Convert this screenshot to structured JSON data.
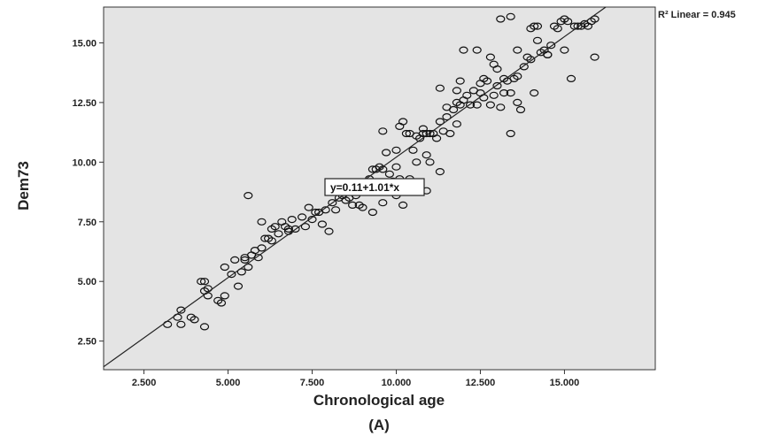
{
  "chart_data": {
    "type": "scatter",
    "title": "",
    "xlabel": "Chronological age",
    "ylabel": "Dem73",
    "caption": "(A)",
    "xlim": [
      1.3,
      17.7
    ],
    "ylim": [
      1.3,
      16.5
    ],
    "x_ticks": [
      2.5,
      5,
      7.5,
      10,
      12.5,
      15
    ],
    "x_tick_labels": [
      "2.500",
      "5.000",
      "7.500",
      "10.000",
      "12.500",
      "15.000"
    ],
    "y_ticks": [
      2.5,
      5,
      7.5,
      10,
      12.5,
      15
    ],
    "y_tick_labels": [
      "2.50",
      "5.00",
      "7.50",
      "10.00",
      "12.50",
      "15.00"
    ],
    "grid": false,
    "fit_line": {
      "intercept": 0.11,
      "slope": 1.01
    },
    "equation_label": "y=0.11+1.01*x",
    "r2_label": "R² Linear = 0.945",
    "colors": {
      "plot_background": "#e4e4e4",
      "marker": "#111111",
      "line": "#222222"
    },
    "points": [
      [
        3.2,
        3.2
      ],
      [
        3.5,
        3.5
      ],
      [
        3.6,
        3.8
      ],
      [
        3.6,
        3.2
      ],
      [
        3.9,
        3.5
      ],
      [
        4.0,
        3.4
      ],
      [
        4.3,
        3.1
      ],
      [
        4.3,
        4.6
      ],
      [
        4.4,
        4.4
      ],
      [
        4.3,
        5.0
      ],
      [
        4.2,
        5.0
      ],
      [
        4.4,
        4.7
      ],
      [
        4.7,
        4.2
      ],
      [
        4.8,
        4.1
      ],
      [
        4.9,
        4.4
      ],
      [
        4.9,
        5.6
      ],
      [
        5.2,
        5.9
      ],
      [
        5.1,
        5.3
      ],
      [
        5.3,
        4.8
      ],
      [
        5.4,
        5.4
      ],
      [
        5.5,
        5.9
      ],
      [
        5.6,
        5.6
      ],
      [
        5.7,
        6.1
      ],
      [
        5.5,
        6.0
      ],
      [
        5.9,
        6.0
      ],
      [
        6.0,
        6.4
      ],
      [
        5.8,
        6.3
      ],
      [
        6.1,
        6.8
      ],
      [
        6.2,
        6.8
      ],
      [
        6.3,
        7.2
      ],
      [
        6.4,
        7.3
      ],
      [
        6.5,
        7.0
      ],
      [
        6.6,
        7.5
      ],
      [
        6.7,
        7.3
      ],
      [
        6.8,
        7.1
      ],
      [
        6.9,
        7.6
      ],
      [
        5.6,
        8.6
      ],
      [
        6.0,
        7.5
      ],
      [
        6.3,
        6.7
      ],
      [
        6.8,
        7.2
      ],
      [
        7.0,
        7.2
      ],
      [
        7.2,
        7.7
      ],
      [
        7.3,
        7.3
      ],
      [
        7.4,
        8.1
      ],
      [
        7.5,
        7.6
      ],
      [
        7.6,
        7.9
      ],
      [
        7.8,
        7.4
      ],
      [
        7.9,
        8.0
      ],
      [
        7.7,
        7.9
      ],
      [
        8.0,
        7.1
      ],
      [
        8.1,
        8.3
      ],
      [
        8.2,
        8.0
      ],
      [
        8.3,
        8.5
      ],
      [
        8.4,
        8.6
      ],
      [
        8.5,
        8.4
      ],
      [
        8.6,
        8.5
      ],
      [
        8.7,
        8.2
      ],
      [
        8.8,
        8.6
      ],
      [
        8.9,
        8.2
      ],
      [
        9.0,
        8.1
      ],
      [
        9.0,
        9.0
      ],
      [
        9.2,
        9.3
      ],
      [
        9.3,
        9.7
      ],
      [
        9.4,
        9.7
      ],
      [
        9.5,
        9.8
      ],
      [
        9.6,
        9.7
      ],
      [
        9.7,
        9.0
      ],
      [
        9.8,
        9.5
      ],
      [
        9.9,
        9.2
      ],
      [
        10.0,
        9.8
      ],
      [
        10.1,
        9.3
      ],
      [
        10.2,
        8.2
      ],
      [
        9.3,
        7.9
      ],
      [
        9.6,
        8.3
      ],
      [
        9.8,
        8.8
      ],
      [
        10.0,
        8.6
      ],
      [
        10.3,
        9.0
      ],
      [
        10.4,
        9.3
      ],
      [
        10.5,
        10.5
      ],
      [
        10.6,
        10.0
      ],
      [
        10.7,
        11.0
      ],
      [
        10.8,
        11.2
      ],
      [
        10.9,
        10.3
      ],
      [
        9.6,
        11.3
      ],
      [
        9.7,
        10.4
      ],
      [
        10.0,
        10.5
      ],
      [
        10.1,
        11.5
      ],
      [
        10.2,
        11.7
      ],
      [
        10.3,
        11.2
      ],
      [
        10.4,
        11.2
      ],
      [
        10.6,
        11.1
      ],
      [
        10.8,
        11.4
      ],
      [
        10.9,
        11.2
      ],
      [
        11.0,
        11.2
      ],
      [
        11.0,
        10.0
      ],
      [
        11.1,
        11.2
      ],
      [
        11.2,
        11.0
      ],
      [
        11.3,
        11.7
      ],
      [
        11.3,
        9.6
      ],
      [
        10.9,
        8.8
      ],
      [
        11.4,
        11.3
      ],
      [
        11.5,
        11.9
      ],
      [
        11.6,
        11.2
      ],
      [
        11.7,
        12.2
      ],
      [
        11.8,
        12.5
      ],
      [
        11.8,
        11.6
      ],
      [
        11.9,
        12.4
      ],
      [
        11.3,
        13.1
      ],
      [
        11.5,
        12.3
      ],
      [
        11.9,
        13.4
      ],
      [
        12.0,
        12.6
      ],
      [
        12.1,
        12.8
      ],
      [
        12.2,
        12.4
      ],
      [
        12.3,
        13.0
      ],
      [
        12.4,
        12.4
      ],
      [
        12.5,
        12.9
      ],
      [
        12.5,
        13.3
      ],
      [
        12.6,
        12.7
      ],
      [
        12.7,
        13.4
      ],
      [
        12.8,
        12.4
      ],
      [
        12.9,
        12.8
      ],
      [
        13.0,
        13.2
      ],
      [
        13.1,
        12.3
      ],
      [
        13.2,
        12.9
      ],
      [
        13.3,
        13.4
      ],
      [
        13.4,
        12.9
      ],
      [
        13.5,
        13.5
      ],
      [
        13.6,
        12.5
      ],
      [
        13.7,
        12.2
      ],
      [
        13.4,
        11.2
      ],
      [
        13.0,
        13.9
      ],
      [
        13.2,
        13.5
      ],
      [
        13.6,
        13.6
      ],
      [
        13.8,
        14.0
      ],
      [
        13.9,
        14.4
      ],
      [
        14.0,
        14.3
      ],
      [
        14.1,
        12.9
      ],
      [
        14.2,
        15.1
      ],
      [
        14.3,
        14.6
      ],
      [
        14.4,
        14.7
      ],
      [
        14.5,
        14.5
      ],
      [
        14.6,
        14.9
      ],
      [
        14.7,
        15.7
      ],
      [
        14.8,
        15.6
      ],
      [
        14.9,
        15.9
      ],
      [
        15.0,
        16.0
      ],
      [
        15.1,
        15.9
      ],
      [
        15.2,
        13.5
      ],
      [
        15.3,
        15.7
      ],
      [
        15.4,
        15.7
      ],
      [
        15.5,
        15.7
      ],
      [
        15.6,
        15.8
      ],
      [
        15.7,
        15.7
      ],
      [
        15.8,
        15.9
      ],
      [
        15.9,
        16.0
      ],
      [
        15.9,
        14.4
      ],
      [
        12.0,
        14.7
      ],
      [
        12.4,
        14.7
      ],
      [
        12.9,
        14.1
      ],
      [
        13.1,
        16.0
      ],
      [
        13.4,
        16.1
      ],
      [
        13.6,
        14.7
      ],
      [
        14.0,
        15.6
      ],
      [
        14.1,
        15.7
      ],
      [
        14.5,
        14.5
      ],
      [
        15.0,
        14.7
      ],
      [
        14.2,
        15.7
      ],
      [
        12.8,
        14.4
      ],
      [
        11.8,
        13.0
      ],
      [
        12.6,
        13.5
      ]
    ]
  }
}
